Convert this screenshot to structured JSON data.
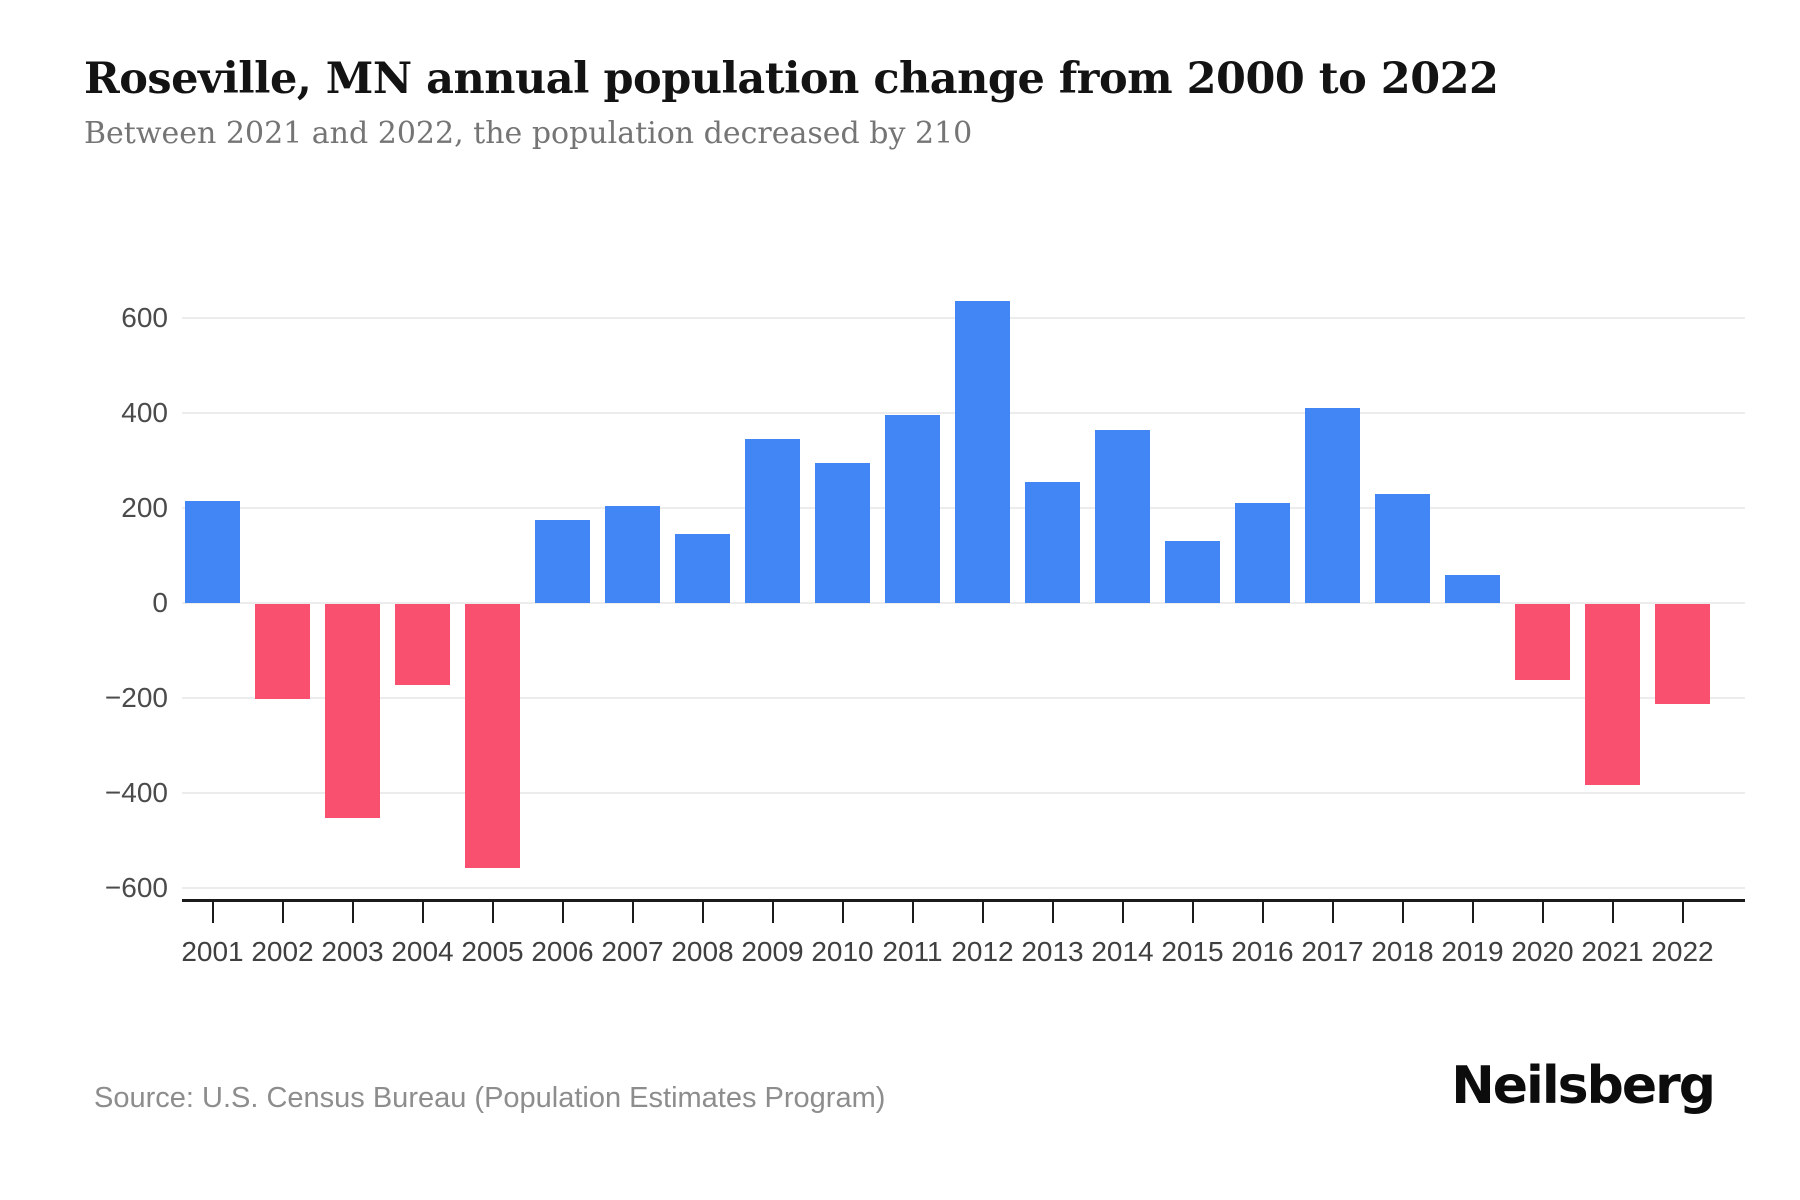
{
  "header": {
    "title": "Roseville, MN annual population change from 2000 to 2022",
    "subtitle": "Between 2021 and 2022, the population decreased by 210"
  },
  "chart_data": {
    "type": "bar",
    "title": "Roseville, MN annual population change from 2000 to 2022",
    "subtitle": "Between 2021 and 2022, the population decreased by 210",
    "categories": [
      "2001",
      "2002",
      "2003",
      "2004",
      "2005",
      "2006",
      "2007",
      "2008",
      "2009",
      "2010",
      "2011",
      "2012",
      "2013",
      "2014",
      "2015",
      "2016",
      "2017",
      "2018",
      "2019",
      "2020",
      "2021",
      "2022"
    ],
    "values": [
      215,
      -200,
      -450,
      -170,
      -555,
      175,
      205,
      145,
      345,
      295,
      395,
      635,
      255,
      365,
      130,
      210,
      410,
      230,
      60,
      -160,
      -380,
      -210
    ],
    "yticks": [
      600,
      400,
      200,
      0,
      -200,
      -400,
      -600
    ],
    "ylim": [
      -625,
      680
    ],
    "xlabel": "",
    "ylabel": "",
    "grid": true,
    "legend": false,
    "colors": {
      "positive_bar": "#4285f4",
      "negative_bar": "#f8506e",
      "gridline": "#ececec",
      "axis_line": "#1b1b1b"
    }
  },
  "footer": {
    "source": "Source: U.S. Census Bureau (Population Estimates Program)",
    "logo": "Neilsberg"
  }
}
